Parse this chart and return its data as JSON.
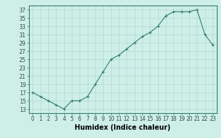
{
  "x": [
    0,
    1,
    2,
    3,
    4,
    5,
    6,
    7,
    8,
    9,
    10,
    11,
    12,
    13,
    14,
    15,
    16,
    17,
    18,
    19,
    20,
    21,
    22,
    23
  ],
  "y": [
    17,
    16,
    15,
    14,
    13,
    15,
    15,
    16,
    19,
    22,
    25,
    26,
    27.5,
    29,
    30.5,
    31.5,
    33,
    35.5,
    36.5,
    36.5,
    36.5,
    37,
    31,
    28.5
  ],
  "title": "",
  "xlabel": "Humidex (Indice chaleur)",
  "ylabel": "",
  "xlim": [
    -0.5,
    23.5
  ],
  "ylim": [
    12,
    38
  ],
  "yticks": [
    13,
    15,
    17,
    19,
    21,
    23,
    25,
    27,
    29,
    31,
    33,
    35,
    37
  ],
  "xticks": [
    0,
    1,
    2,
    3,
    4,
    5,
    6,
    7,
    8,
    9,
    10,
    11,
    12,
    13,
    14,
    15,
    16,
    17,
    18,
    19,
    20,
    21,
    22,
    23
  ],
  "line_color": "#2d7a6a",
  "marker_color": "#2d7a6a",
  "bg_color": "#ceeee8",
  "grid_color": "#b0d8d0",
  "tick_fontsize": 5.5,
  "xlabel_fontsize": 7.0
}
